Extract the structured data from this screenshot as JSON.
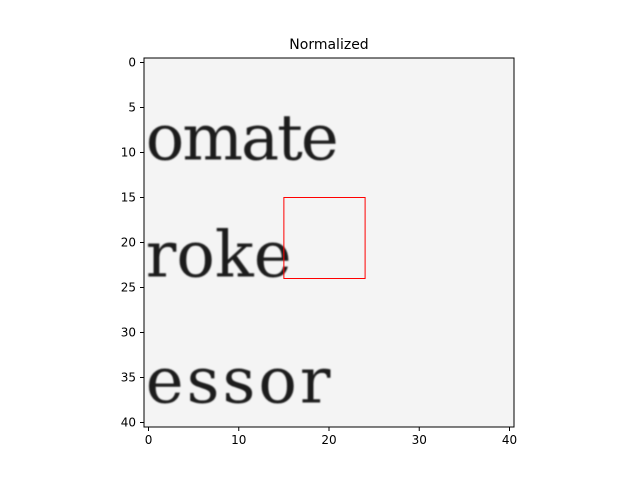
{
  "chart_data": {
    "type": "heatmap",
    "title": "Normalized",
    "xlabel": "",
    "ylabel": "",
    "xlim": [
      -0.5,
      40.5
    ],
    "ylim": [
      40.5,
      -0.5
    ],
    "x_ticks": [
      0,
      10,
      20,
      30,
      40
    ],
    "x_tick_labels": [
      "0",
      "10",
      "20",
      "30",
      "40"
    ],
    "y_ticks": [
      0,
      5,
      10,
      15,
      20,
      25,
      30,
      35,
      40
    ],
    "y_tick_labels": [
      "0",
      "5",
      "10",
      "15",
      "20",
      "25",
      "30",
      "35",
      "40"
    ],
    "colormap": "gray",
    "grid": false,
    "image_text_rows": [
      {
        "text": "omate",
        "row_center": 8
      },
      {
        "text": "roke",
        "row_center": 21
      },
      {
        "text": "essor",
        "row_center": 35
      }
    ],
    "highlight_box": {
      "x": [
        15,
        24
      ],
      "y": [
        15,
        24
      ],
      "color": "#ff0000"
    }
  }
}
